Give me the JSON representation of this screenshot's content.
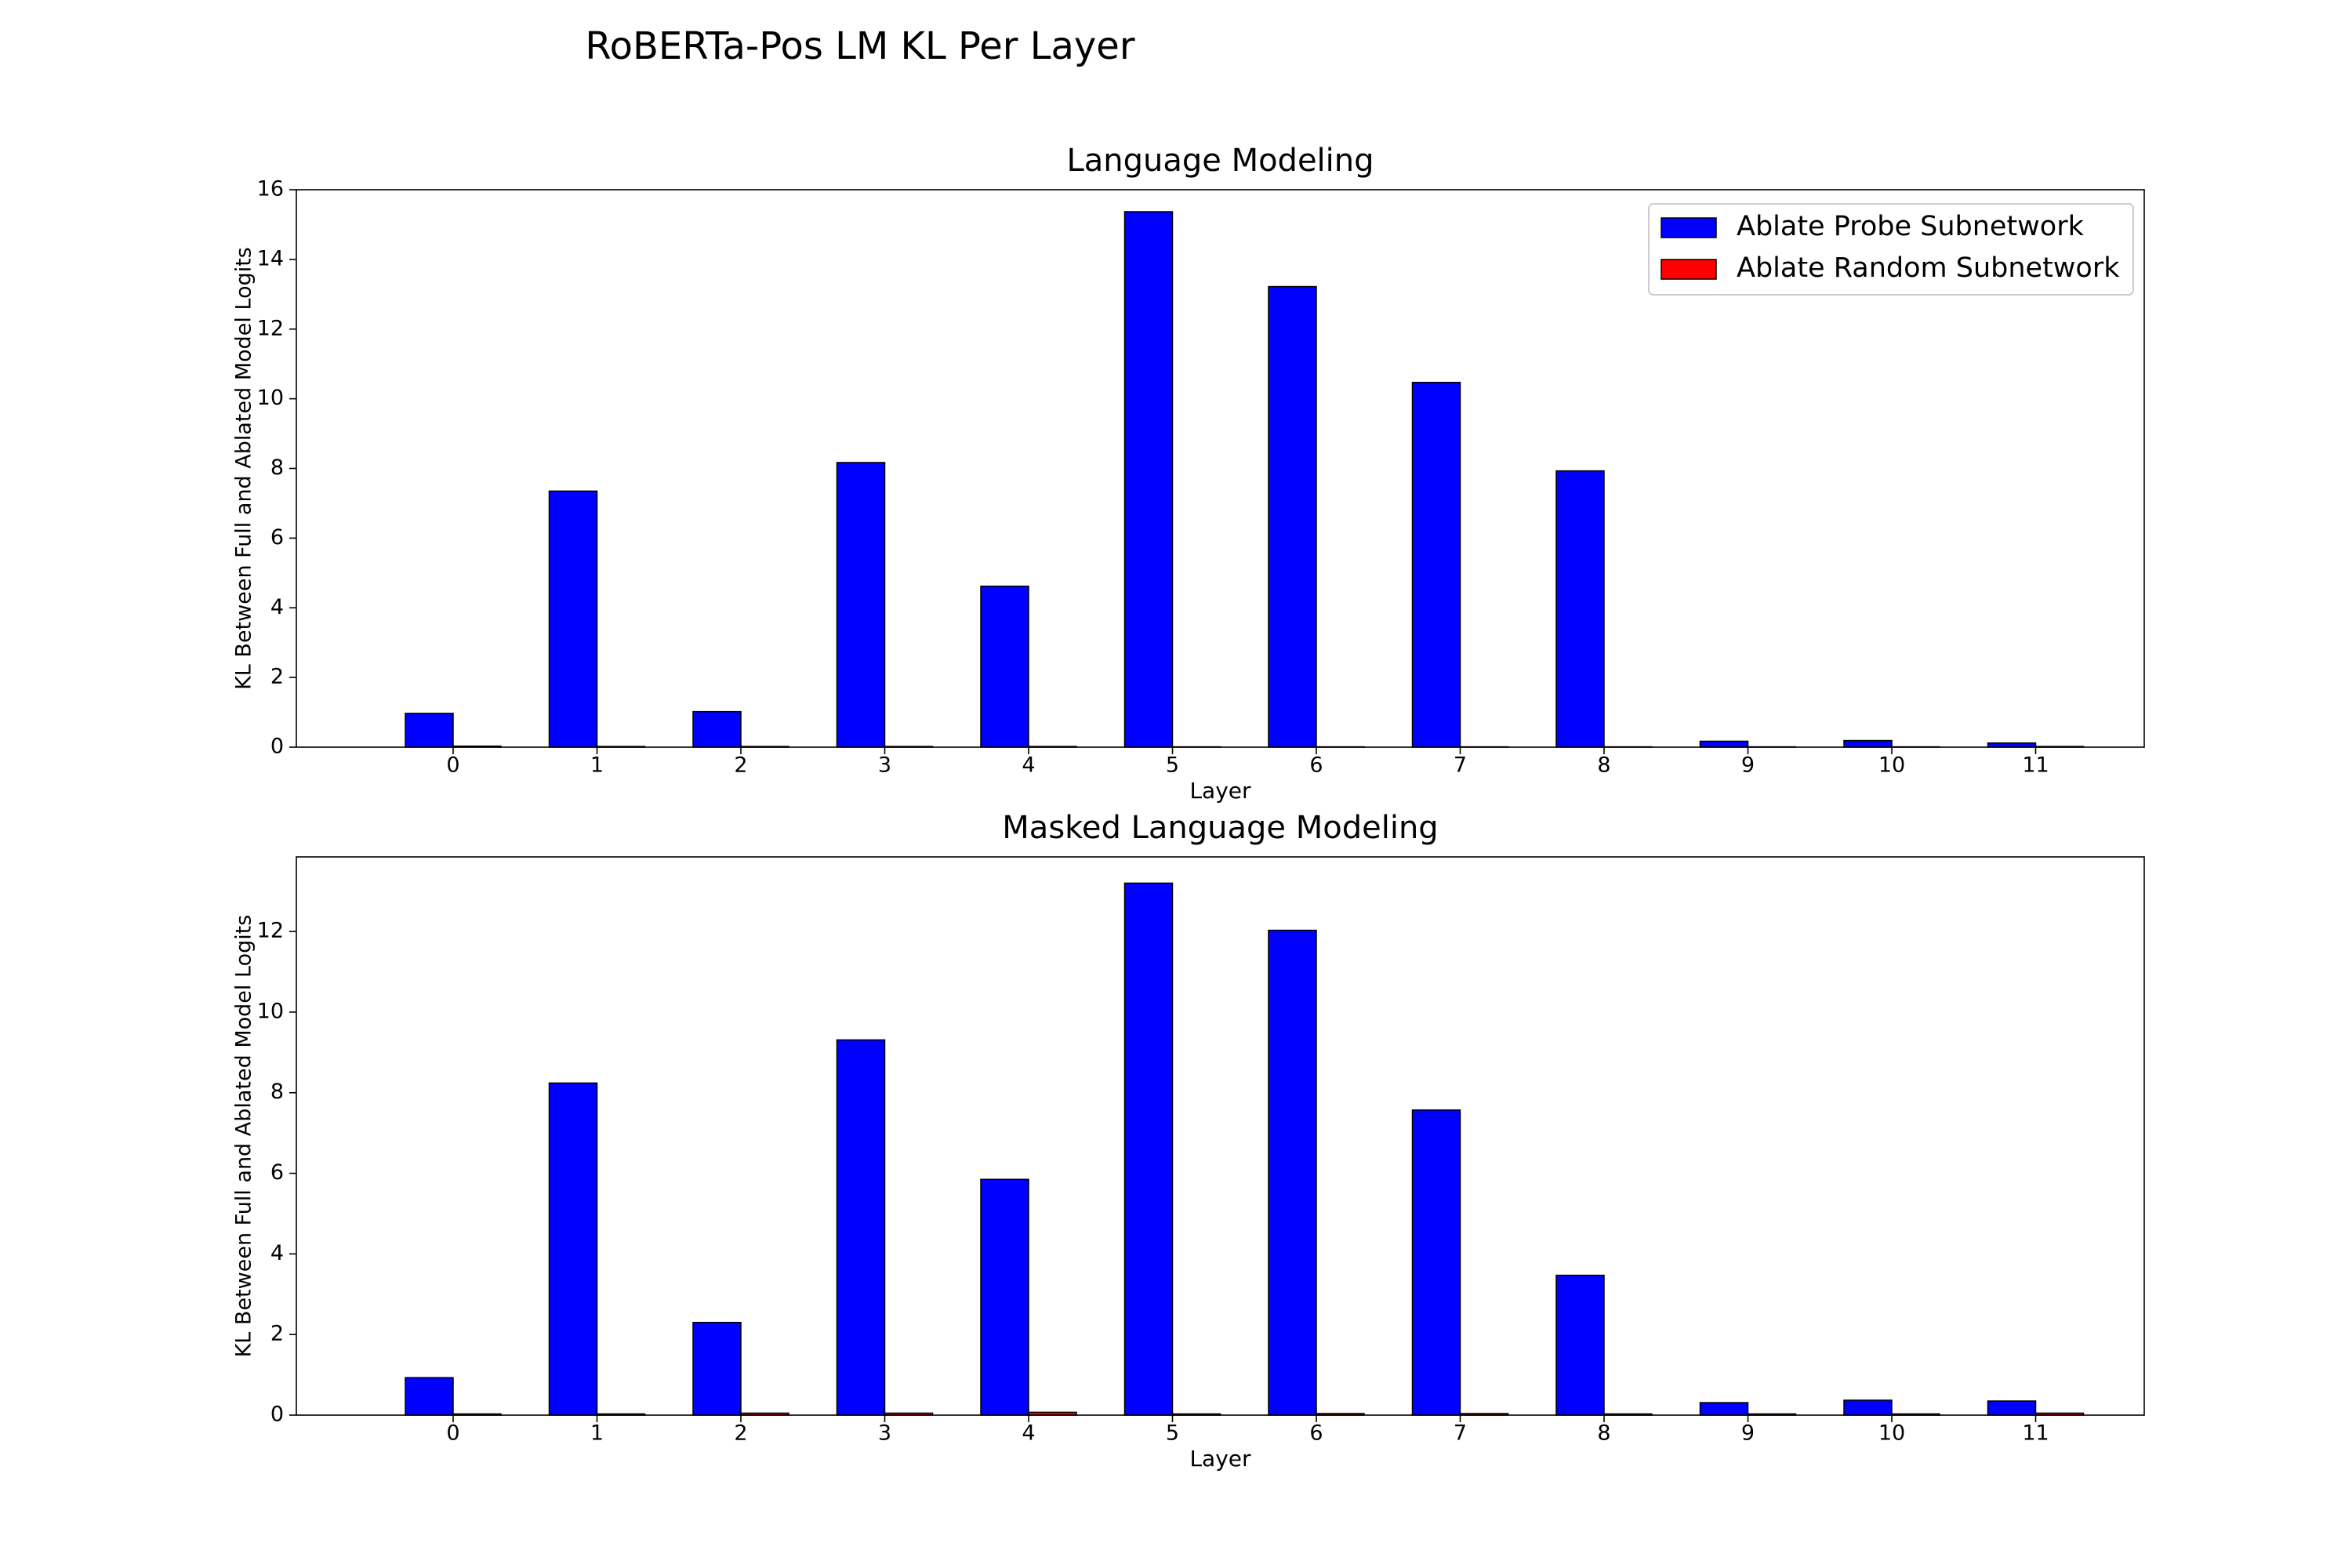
{
  "figure": {
    "title": "RoBERTa-Pos LM KL Per Layer"
  },
  "legend": {
    "placement": "top-right",
    "entries": [
      {
        "label": "Ablate Probe Subnetwork",
        "color": "#0000ff"
      },
      {
        "label": "Ablate Random Subnetwork",
        "color": "#ff0000"
      }
    ]
  },
  "chart_data": [
    {
      "type": "bar",
      "title": "Language Modeling",
      "xlabel": "Layer",
      "ylabel": "KL Between Full and Ablated Model Logits",
      "categories": [
        "0",
        "1",
        "2",
        "3",
        "4",
        "5",
        "6",
        "7",
        "8",
        "9",
        "10",
        "11"
      ],
      "ylim": [
        0,
        16
      ],
      "yticks": [
        "0",
        "2",
        "4",
        "6",
        "8",
        "10",
        "12",
        "14",
        "16"
      ],
      "grid": false,
      "legend": "top-right",
      "series": [
        {
          "name": "Ablate Probe Subnetwork",
          "color": "#0000ff",
          "values": [
            0.97,
            7.35,
            1.02,
            8.17,
            4.62,
            15.37,
            13.22,
            10.47,
            7.93,
            0.17,
            0.19,
            0.12
          ]
        },
        {
          "name": "Ablate Random Subnetwork",
          "color": "#ff0000",
          "values": [
            0.03,
            0.02,
            0.02,
            0.02,
            0.02,
            0.01,
            0.01,
            0.01,
            0.01,
            0.01,
            0.01,
            0.02
          ]
        }
      ]
    },
    {
      "type": "bar",
      "title": "Masked Language Modeling",
      "xlabel": "Layer",
      "ylabel": "KL Between Full and Ablated Model Logits",
      "categories": [
        "0",
        "1",
        "2",
        "3",
        "4",
        "5",
        "6",
        "7",
        "8",
        "9",
        "10",
        "11"
      ],
      "ylim": [
        0,
        13.85
      ],
      "yticks": [
        "0",
        "2",
        "4",
        "6",
        "8",
        "10",
        "12"
      ],
      "grid": false,
      "legend": "none",
      "series": [
        {
          "name": "Ablate Probe Subnetwork",
          "color": "#0000ff",
          "values": [
            0.93,
            8.24,
            2.3,
            9.31,
            5.85,
            13.2,
            12.03,
            7.57,
            3.47,
            0.31,
            0.37,
            0.35
          ]
        },
        {
          "name": "Ablate Random Subnetwork",
          "color": "#ff0000",
          "values": [
            0.03,
            0.03,
            0.05,
            0.05,
            0.07,
            0.03,
            0.04,
            0.04,
            0.03,
            0.03,
            0.03,
            0.05
          ]
        }
      ]
    }
  ]
}
